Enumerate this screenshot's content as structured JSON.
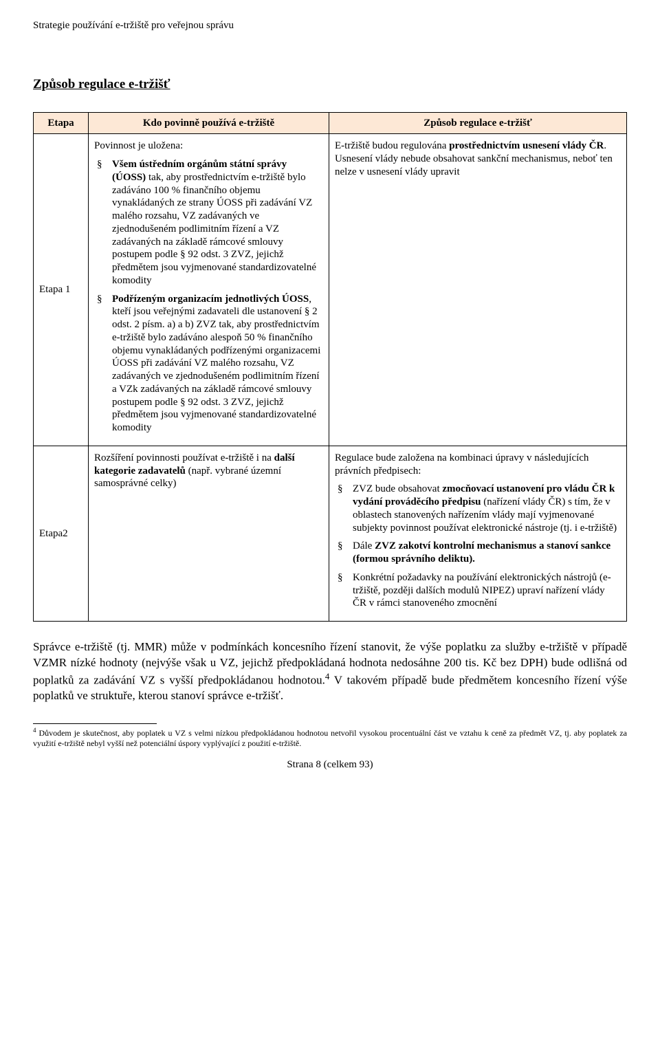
{
  "header": {
    "title": "Strategie používání e-tržiště pro veřejnou správu"
  },
  "section": {
    "title": "Způsob regulace e-tržišť"
  },
  "table": {
    "headers": {
      "col1": "Etapa",
      "col2": "Kdo povinně používá e-tržiště",
      "col3": "Způsob regulace e-tržišť"
    },
    "etapa1": {
      "label": "Etapa 1",
      "col2": {
        "intro": "Povinnost je uložena:",
        "bullets": [
          {
            "pre": "Všem ústředním orgánům státní správy (ÚOSS)",
            "post": " tak, aby prostřednictvím e-tržiště bylo zadáváno 100 % finančního objemu vynakládaných ze strany ÚOSS při zadávání VZ malého rozsahu, VZ zadávaných ve zjednodušeném podlimitním řízení a VZ zadávaných na základě rámcové smlouvy postupem podle § 92 odst. 3 ZVZ, jejichž předmětem jsou vyjmenované standardizovatelné komodity"
          },
          {
            "pre": "Podřízeným organizacím jednotlivých ÚOSS",
            "post": ", kteří jsou veřejnými zadavateli dle ustanovení § 2 odst. 2 písm. a) a b) ZVZ tak, aby prostřednictvím e-tržiště bylo zadáváno alespoň 50 % finančního objemu vynakládaných podřízenými organizacemi ÚOSS při zadávání VZ malého rozsahu, VZ zadávaných ve zjednodušeném podlimitním řízení a VZk zadávaných na základě rámcové smlouvy postupem podle § 92 odst. 3 ZVZ, jejichž předmětem jsou vyjmenované standardizovatelné komodity"
          }
        ]
      },
      "col3": {
        "p1_pre": "E-tržiště budou regulována ",
        "p1_bold": "prostřednictvím usnesení vlády ČR",
        "p1_post": ". Usnesení vlády nebude obsahovat sankční mechanismus, neboť ten nelze v usnesení vlády upravit"
      }
    },
    "etapa2": {
      "label": "Etapa2",
      "col2": {
        "p1_pre": "Rozšíření povinnosti používat e-tržiště i na ",
        "p1_bold": "další kategorie zadavatelů",
        "p1_post": " (např. vybrané územní samosprávné celky)"
      },
      "col3": {
        "intro": "Regulace bude založena na kombinaci úpravy v následujících právních předpisech:",
        "bullets": [
          {
            "pre": "ZVZ bude obsahovat ",
            "bold": "zmocňovací ustanovení pro vládu ČR k vydání prováděcího předpisu",
            "post": " (nařízení vlády ČR) s tím, že v oblastech stanovených nařízením vlády mají vyjmenované subjekty povinnost používat elektronické nástroje (tj. i e-tržiště)"
          },
          {
            "pre": "Dále ",
            "bold": "ZVZ zakotví kontrolní mechanismus a stanoví sankce (formou správního deliktu).",
            "post": ""
          },
          {
            "pre": "Konkrétní požadavky na používání elektronických nástrojů (e-tržiště, později dalších modulů NIPEZ) upraví nařízení vlády ČR v rámci stanoveného zmocnění",
            "bold": "",
            "post": ""
          }
        ]
      }
    }
  },
  "body_para": {
    "text_pre": "Správce e-tržiště (tj. MMR) může v podmínkách koncesního řízení stanovit, že výše poplatku za služby e-tržiště v případě VZMR nízké hodnoty (nejvýše však u VZ, jejichž předpokládaná hodnota nedosáhne 200 tis. Kč bez DPH) bude odlišná od poplatků za zadávání VZ s vyšší předpokládanou hodnotou.",
    "sup": "4",
    "text_post": " V takovém případě bude předmětem koncesního řízení výše poplatků ve struktuře, kterou stanoví správce e-tržišť."
  },
  "footnote": {
    "num": "4",
    "text": " Důvodem je skutečnost, aby poplatek u VZ s velmi nízkou předpokládanou hodnotou netvořil vysokou procentuální část ve vztahu k ceně za předmět VZ, tj. aby poplatek za využití e-tržiště nebyl vyšší než potenciální úspory vyplývající z použití e-tržiště."
  },
  "page_footer": {
    "text": "Strana 8 (celkem 93)"
  }
}
